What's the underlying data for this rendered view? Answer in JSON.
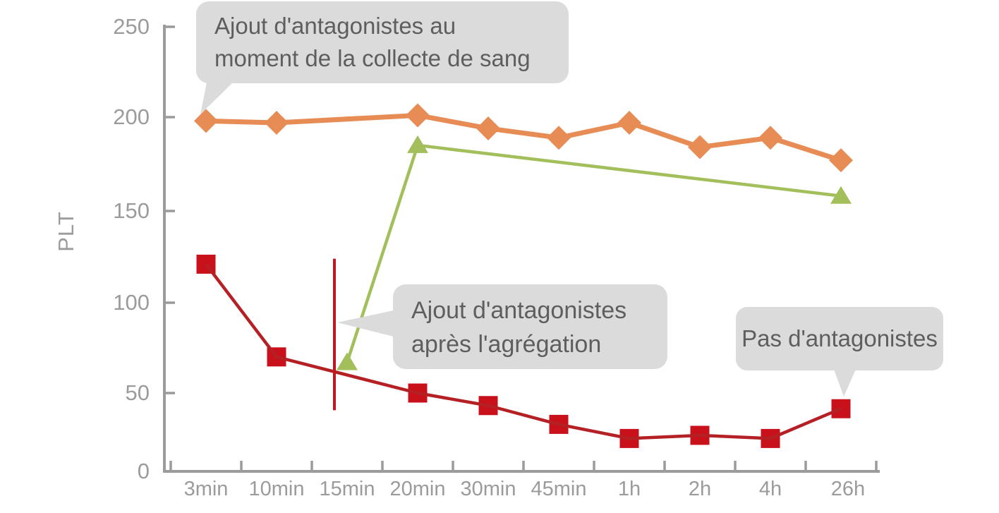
{
  "chart_data": {
    "type": "line",
    "title": "",
    "xlabel": "",
    "ylabel": "PLT",
    "ylim": [
      0,
      250
    ],
    "ytick_labels": [
      "0",
      "50",
      "100",
      "150",
      "200",
      "250"
    ],
    "ytick_values": [
      0,
      50,
      100,
      150,
      200,
      250
    ],
    "categories": [
      "3min",
      "10min",
      "15min",
      "20min",
      "30min",
      "45min",
      "1h",
      "2h",
      "4h",
      "26h"
    ],
    "grid": false,
    "legend_position": "none",
    "series": [
      {
        "name": "Ajout d'antagonistes au moment de la collecte de sang",
        "marker": "diamond",
        "color": "#E78C54",
        "line_color": "#E78C54",
        "categories": [
          "3min",
          "10min",
          "20min",
          "30min",
          "45min",
          "1h",
          "2h",
          "4h",
          "26h"
        ],
        "values": [
          198,
          197,
          201,
          194,
          189,
          197,
          184,
          189,
          177
        ]
      },
      {
        "name": "Ajout d'antagonistes après l'agrégation",
        "marker": "triangle-up",
        "color": "#A3BF5B",
        "line_color": "#A3BF5B",
        "categories": [
          "15min",
          "20min",
          "26h"
        ],
        "values": [
          67,
          185,
          158
        ]
      },
      {
        "name": "Pas d'antagonistes",
        "marker": "square",
        "color": "#C8111A",
        "line_color": "#B52025",
        "categories": [
          "3min",
          "10min",
          "20min",
          "30min",
          "45min",
          "1h",
          "2h",
          "4h",
          "26h"
        ],
        "values": [
          121,
          70,
          50,
          42,
          30,
          21,
          23,
          21,
          40
        ]
      }
    ],
    "annotations": {
      "marker_line": {
        "category": "15min",
        "color": "#C01820",
        "value_from": 39,
        "value_to": 124
      },
      "callouts": [
        {
          "id": "collecte",
          "line1": "Ajout d'antagonistes au",
          "line2": "moment de la collecte de sang"
        },
        {
          "id": "apres",
          "line1": "Ajout d'antagonistes",
          "line2": "après l'agrégation"
        },
        {
          "id": "pas",
          "line1": "Pas d'antagonistes"
        }
      ]
    }
  },
  "style": {
    "axis_color": "#9B9B9B",
    "label_color": "#9B9B9B",
    "callout_bg": "#DBDBDB",
    "callout_text_color": "#5E5E5E",
    "background": "#FFFFFF"
  }
}
